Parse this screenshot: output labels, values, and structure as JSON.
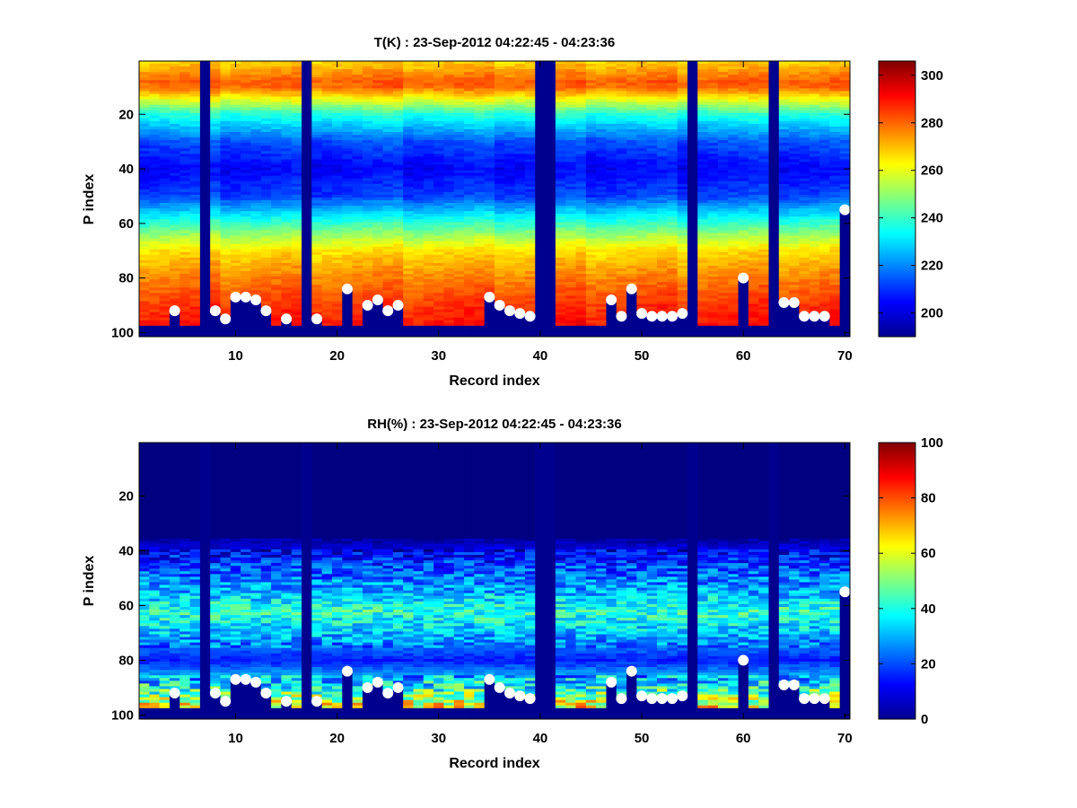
{
  "colors": {
    "background": "#ffffff",
    "profile_marker": "#ffffff",
    "masked": "#00008f"
  },
  "chart_data": [
    {
      "type": "heatmap",
      "title": "T(K) : 23-Sep-2012 04:22:45 - 04:23:36",
      "xlabel": "Record index",
      "ylabel": "P index",
      "xlim": [
        0.5,
        70.5
      ],
      "ylim": [
        0.5,
        101.5
      ],
      "y_reversed": true,
      "xticks": [
        10,
        20,
        30,
        40,
        50,
        60,
        70
      ],
      "yticks": [
        20,
        40,
        60,
        80,
        100
      ],
      "colormap": "jet",
      "color_limits": [
        190,
        306
      ],
      "colorbar_ticks": [
        200,
        220,
        240,
        260,
        280,
        300
      ],
      "missing_records": [
        7,
        17,
        40,
        41,
        55,
        63
      ],
      "profile": {
        "description": "Lowest valid P level per record, shown as white dots",
        "x": [
          4,
          8,
          9,
          10,
          11,
          12,
          13,
          15,
          18,
          21,
          23,
          24,
          25,
          26,
          35,
          36,
          37,
          38,
          39,
          47,
          48,
          49,
          50,
          51,
          52,
          53,
          54,
          60,
          64,
          65,
          66,
          67,
          68,
          70
        ],
        "y": [
          92,
          92,
          95,
          87,
          87,
          88,
          92,
          95,
          95,
          84,
          90,
          88,
          92,
          90,
          87,
          90,
          92,
          93,
          94,
          88,
          94,
          84,
          93,
          94,
          94,
          94,
          93,
          80,
          89,
          89,
          94,
          94,
          94,
          55
        ]
      },
      "vertical_structure": {
        "p_index": [
          1,
          8,
          10,
          20,
          30,
          40,
          50,
          60,
          70,
          80,
          90,
          97
        ],
        "value": [
          268,
          281,
          280,
          238,
          214,
          204,
          212,
          240,
          266,
          277,
          286,
          290
        ]
      }
    },
    {
      "type": "heatmap",
      "title": "RH(%) : 23-Sep-2012 04:22:45 - 04:23:36",
      "xlabel": "Record index",
      "ylabel": "P index",
      "xlim": [
        0.5,
        70.5
      ],
      "ylim": [
        0.5,
        101.5
      ],
      "y_reversed": true,
      "xticks": [
        10,
        20,
        30,
        40,
        50,
        60,
        70
      ],
      "yticks": [
        20,
        40,
        60,
        80,
        100
      ],
      "colormap": "jet",
      "color_limits": [
        0,
        100
      ],
      "colorbar_ticks": [
        0,
        20,
        40,
        60,
        80,
        100
      ],
      "missing_records": [
        7,
        17,
        40,
        41,
        55,
        63
      ],
      "profile": {
        "description": "Lowest valid P level per record, shown as white dots",
        "x": [
          4,
          8,
          9,
          10,
          11,
          12,
          13,
          15,
          18,
          21,
          23,
          24,
          25,
          26,
          35,
          36,
          37,
          38,
          39,
          47,
          48,
          49,
          50,
          51,
          52,
          53,
          54,
          60,
          64,
          65,
          66,
          67,
          68,
          70
        ],
        "y": [
          92,
          92,
          95,
          87,
          87,
          88,
          92,
          95,
          95,
          84,
          90,
          88,
          92,
          90,
          87,
          90,
          92,
          93,
          94,
          88,
          94,
          84,
          93,
          94,
          94,
          94,
          93,
          80,
          89,
          89,
          94,
          94,
          94,
          55
        ]
      },
      "vertical_structure": {
        "p_index": [
          1,
          35,
          45,
          55,
          62,
          70,
          80,
          90,
          97
        ],
        "value": [
          0,
          2,
          18,
          30,
          42,
          32,
          15,
          40,
          65
        ]
      }
    }
  ]
}
